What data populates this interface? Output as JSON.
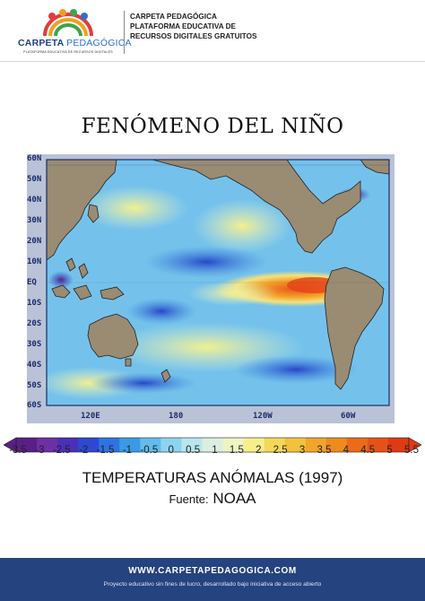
{
  "header": {
    "logo_brand": "CARPETA",
    "logo_brand_light": "PEDAGÓGICA",
    "logo_tagline": "PLATAFORMA EDUCATIVA DE RECURSOS DIGITALES",
    "lines": [
      "CARPETA PEDAGÓGICA",
      "PLATAFORMA EDUCATIVA DE",
      "RECURSOS DIGITALES GRATUITOS"
    ]
  },
  "title": "FENÓMENO DEL NIÑO",
  "map": {
    "latitude_labels": [
      "60N",
      "50N",
      "40N",
      "30N",
      "20N",
      "10N",
      "EQ",
      "10S",
      "20S",
      "30S",
      "40S",
      "50S",
      "60S"
    ],
    "longitude_labels": [
      "120E",
      "180",
      "120W",
      "60W"
    ]
  },
  "color_scale": {
    "ticks": [
      "-3.5",
      "-3",
      "-2.5",
      "-2",
      "-1.5",
      "-1",
      "-0.5",
      "0",
      "0.5",
      "1",
      "1.5",
      "2",
      "2.5",
      "3",
      "3.5",
      "4",
      "4.5",
      "5",
      "5.5"
    ],
    "colors": [
      "#5a1f86",
      "#6d2fa6",
      "#4a2fb8",
      "#2f48d2",
      "#2f73e3",
      "#3a9ae8",
      "#62bcec",
      "#8ed4ef",
      "#b9e5ee",
      "#dbefe1",
      "#eef4c4",
      "#f6f08a",
      "#f3d95a",
      "#f2c23c",
      "#f1a52a",
      "#ee8a1e",
      "#ea6c18",
      "#e65216",
      "#e03a14"
    ]
  },
  "caption": "TEMPERATURAS ANÓMALAS (1997)",
  "source": {
    "label": "Fuente:",
    "value": "NOAA"
  },
  "footer": {
    "url": "WWW.CARPETAPEDAGOGICA.COM",
    "note": "Proyecto educativo sin fines de lucro, desarrollado bajo iniciativa de acceso abierto"
  }
}
